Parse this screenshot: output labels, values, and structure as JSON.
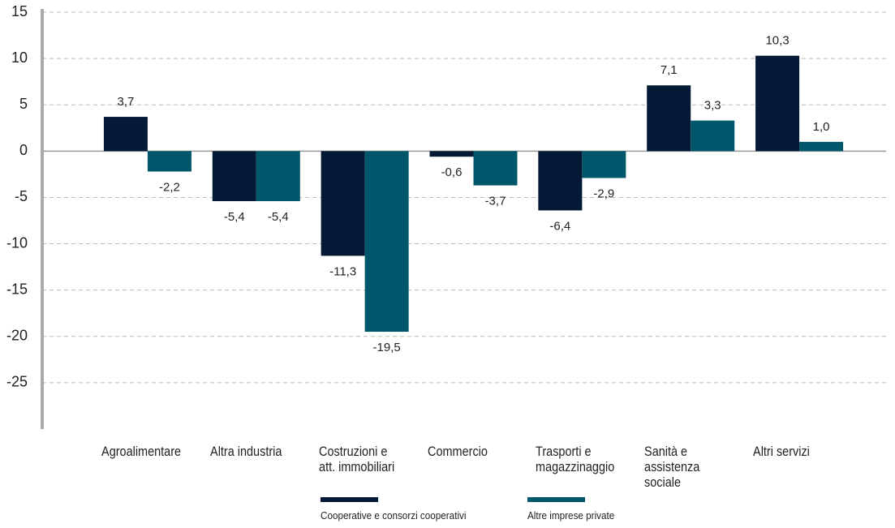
{
  "chart_data": {
    "type": "bar",
    "categories": [
      "Agroalimentare",
      "Altra industria",
      "Costruzioni e\natt. immobiliari",
      "Commercio",
      "Trasporti e\nmagazzinaggio",
      "Sanità e\nassistenza sociale",
      "Altri servizi"
    ],
    "series": [
      {
        "name": "Cooperative e consorzi cooperativi",
        "color": "#031936",
        "values": [
          3.7,
          -5.4,
          -11.3,
          -0.6,
          -6.4,
          7.1,
          10.3
        ],
        "value_labels": [
          "3,7",
          "-5,4",
          "-11,3",
          "-0,6",
          "-6,4",
          "7,1",
          "10,3"
        ]
      },
      {
        "name": "Altre imprese private",
        "color": "#00566a",
        "values": [
          -2.2,
          -5.4,
          -19.5,
          -3.7,
          -2.9,
          3.3,
          1.0
        ],
        "value_labels": [
          "-2,2",
          "-5,4",
          "-19,5",
          "-3,7",
          "-2,9",
          "3,3",
          "1,0"
        ]
      }
    ],
    "ylim": [
      -30,
      15
    ],
    "yticks": [
      15,
      10,
      5,
      0,
      -5,
      -10,
      -15,
      -20,
      -25
    ],
    "grid": true,
    "legend": "bottom"
  }
}
